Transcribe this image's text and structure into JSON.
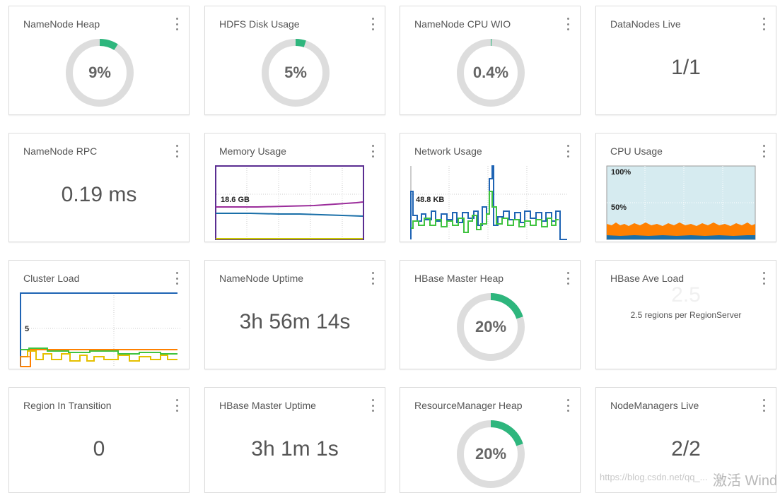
{
  "colors": {
    "donut_track": "#dddddd",
    "donut_fill": "#2eb67d",
    "mem_purple": "#9b2d9b",
    "mem_blue": "#1a6fa8",
    "net_blue": "#1f64b4",
    "net_green": "#3fc33f",
    "cpu_bg": "#d6ebf0",
    "cpu_orange": "#ff8000",
    "load_blue": "#1f64b4",
    "load_orange": "#ff8000",
    "load_green": "#3fc33f",
    "load_yellow": "#e5c000"
  },
  "widgets": {
    "namenode_heap": {
      "title": "NameNode Heap",
      "value": "9%",
      "percent": 9
    },
    "hdfs_disk": {
      "title": "HDFS Disk Usage",
      "value": "5%",
      "percent": 5
    },
    "namenode_cpu": {
      "title": "NameNode CPU WIO",
      "value": "0.4%",
      "percent": 0.4
    },
    "datanodes_live": {
      "title": "DataNodes Live",
      "value": "1/1"
    },
    "namenode_rpc": {
      "title": "NameNode RPC",
      "value": "0.19 ms"
    },
    "memory_usage": {
      "title": "Memory Usage",
      "label": "18.6 GB"
    },
    "network_usage": {
      "title": "Network Usage",
      "label": "48.8 KB"
    },
    "cpu_usage": {
      "title": "CPU Usage",
      "label_top": "100%",
      "label_mid": "50%"
    },
    "cluster_load": {
      "title": "Cluster Load",
      "label": "5"
    },
    "namenode_uptime": {
      "title": "NameNode Uptime",
      "value": "3h 56m 14s"
    },
    "hbase_master_heap": {
      "title": "HBase Master Heap",
      "value": "20%",
      "percent": 20
    },
    "hbase_ave_load": {
      "title": "HBase Ave Load",
      "value": "2.5",
      "subtext": "2.5 regions per RegionServer"
    },
    "region_in_transition": {
      "title": "Region In Transition",
      "value": "0"
    },
    "hbase_master_uptime": {
      "title": "HBase Master Uptime",
      "value": "3h 1m 1s"
    },
    "resourcemanager_heap": {
      "title": "ResourceManager Heap",
      "value": "20%",
      "percent": 20
    },
    "nodemanagers_live": {
      "title": "NodeManagers Live",
      "value": "2/2"
    }
  },
  "overlay": {
    "csdn": "https://blog.csdn.net/qq_...",
    "activate": "激活 Wind"
  }
}
